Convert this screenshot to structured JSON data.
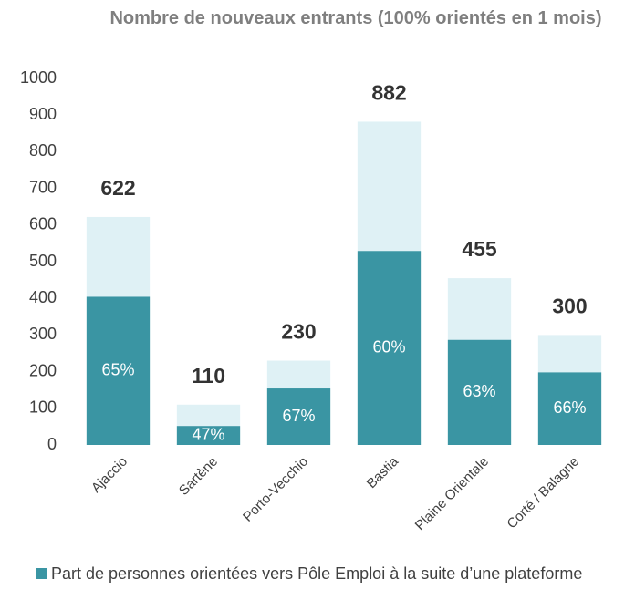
{
  "chart_data": {
    "type": "bar",
    "title": "Nombre de nouveaux entrants (100% orientés en 1 mois)",
    "categories": [
      "Ajaccio",
      "Sartène",
      "Porto-Vecchio",
      "Bastia",
      "Plaine Orientale",
      "Corté / Balagne"
    ],
    "totals": [
      622,
      110,
      230,
      882,
      455,
      300
    ],
    "total_color": "#dff1f5",
    "shares": [
      65,
      47,
      67,
      60,
      63,
      66
    ],
    "share_labels": [
      "65%",
      "47%",
      "67%",
      "60%",
      "63%",
      "66%"
    ],
    "legend_name": "Part de personnes orientées vers Pôle Emploi à la suite d’une plateforme",
    "color": "#3a95a3",
    "ylim": [
      0,
      1000
    ],
    "yticks": [
      0,
      100,
      200,
      300,
      400,
      500,
      600,
      700,
      800,
      900,
      1000
    ],
    "grid": false
  }
}
